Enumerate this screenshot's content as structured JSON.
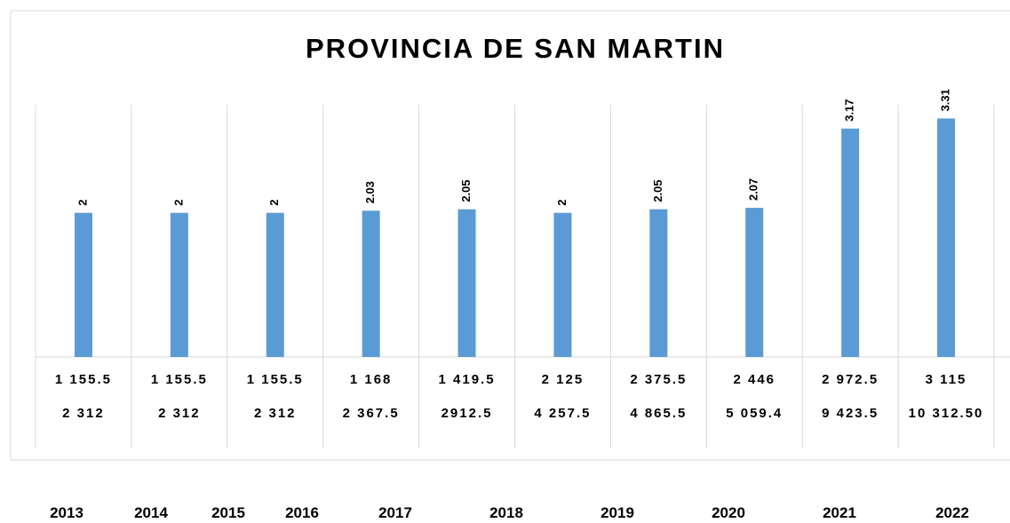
{
  "chart_data": {
    "type": "bar",
    "title": "PROVINCIA DE SAN MARTIN",
    "categories": [
      null,
      null,
      null,
      null,
      null,
      null,
      null,
      null,
      null,
      null
    ],
    "values": [
      2,
      2,
      2,
      2.03,
      2.05,
      2,
      2.05,
      2.07,
      3.17,
      3.31
    ],
    "color": "#5b9bd5",
    "ylim": [
      0,
      3.5
    ],
    "table_rows": [
      [
        "1 155.5",
        "1 155.5",
        "1 155.5",
        "1 168",
        "1 419.5",
        "2 125",
        "2 375.5",
        "2 446",
        "2 972.5",
        "3 115"
      ],
      [
        "2 312",
        "2 312",
        "2 312",
        "2 367.5",
        "2912.5",
        "4 257.5",
        "4 865.5",
        "5 059.4",
        "9 423.5",
        "10 312.50"
      ]
    ],
    "year_labels": [
      "2013",
      "2014",
      "2015",
      "2016",
      "2017",
      "2018",
      "2019",
      "2020",
      "2021",
      "2022"
    ]
  }
}
